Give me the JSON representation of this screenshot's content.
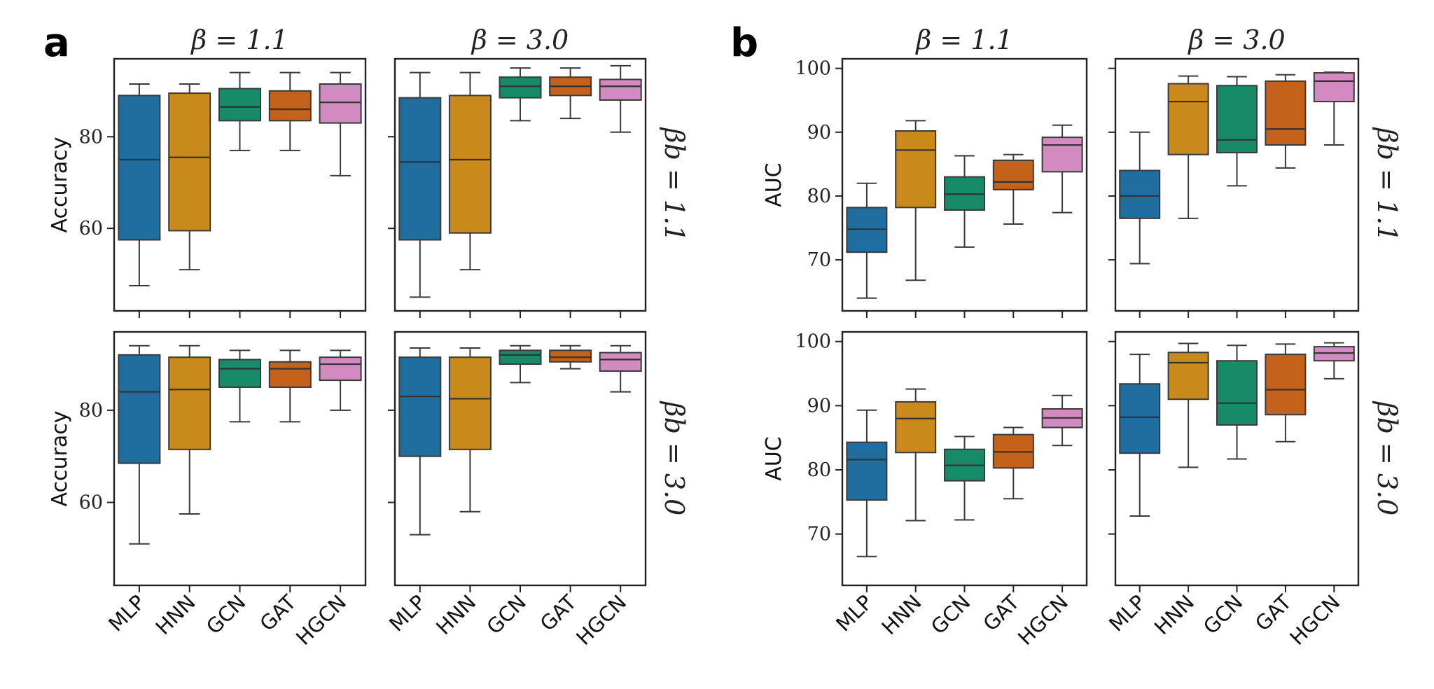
{
  "figure": {
    "panel_labels": [
      "a",
      "b"
    ],
    "column_titles": [
      "β = 1.1",
      "β = 3.0"
    ],
    "row_labels": [
      "βb = 1.1",
      "βb = 3.0"
    ]
  },
  "colors": {
    "MLP": "#1f6e9f",
    "HNN": "#c98a1c",
    "GCN": "#178a68",
    "GAT": "#c4611b",
    "HGCN": "#d18bc0"
  },
  "chart_data": [
    {
      "panel": "a",
      "type": "box",
      "metric": "Accuracy",
      "categories": [
        "MLP",
        "HNN",
        "GCN",
        "GAT",
        "HGCN"
      ],
      "ylabel": "Accuracy",
      "yticks": [
        60,
        80
      ],
      "ylim": [
        42,
        97
      ],
      "subplots": [
        {
          "title": "β = 1.1",
          "row_label": "βb = 1.1",
          "boxes": [
            {
              "min": 47.5,
              "q1": 57.5,
              "median": 75,
              "q3": 89,
              "max": 91.5
            },
            {
              "min": 51,
              "q1": 59.5,
              "median": 75.5,
              "q3": 89.5,
              "max": 91.5
            },
            {
              "min": 77,
              "q1": 83.5,
              "median": 86.5,
              "q3": 90.5,
              "max": 94
            },
            {
              "min": 77,
              "q1": 83.5,
              "median": 86,
              "q3": 90,
              "max": 94
            },
            {
              "min": 71.5,
              "q1": 83,
              "median": 87.5,
              "q3": 91.5,
              "max": 94
            }
          ]
        },
        {
          "title": "β = 3.0",
          "row_label": "βb = 1.1",
          "boxes": [
            {
              "min": 45,
              "q1": 57.5,
              "median": 74.5,
              "q3": 88.5,
              "max": 94
            },
            {
              "min": 51,
              "q1": 59,
              "median": 75,
              "q3": 89,
              "max": 94
            },
            {
              "min": 83.5,
              "q1": 88.5,
              "median": 91,
              "q3": 93,
              "max": 95
            },
            {
              "min": 84,
              "q1": 89,
              "median": 91,
              "q3": 93,
              "max": 95
            },
            {
              "min": 81,
              "q1": 88,
              "median": 91,
              "q3": 92.5,
              "max": 95.5
            }
          ]
        },
        {
          "title": "β = 1.1",
          "row_label": "βb = 3.0",
          "boxes": [
            {
              "min": 51,
              "q1": 68.5,
              "median": 84,
              "q3": 92,
              "max": 94
            },
            {
              "min": 57.5,
              "q1": 71.5,
              "median": 84.5,
              "q3": 91.5,
              "max": 94
            },
            {
              "min": 77.5,
              "q1": 85,
              "median": 89,
              "q3": 91,
              "max": 93
            },
            {
              "min": 77.5,
              "q1": 85,
              "median": 89,
              "q3": 90.5,
              "max": 93
            },
            {
              "min": 80,
              "q1": 86.5,
              "median": 90,
              "q3": 91.5,
              "max": 93
            }
          ]
        },
        {
          "title": "β = 3.0",
          "row_label": "βb = 3.0",
          "boxes": [
            {
              "min": 53,
              "q1": 70,
              "median": 83,
              "q3": 91.5,
              "max": 93.5
            },
            {
              "min": 58,
              "q1": 71.5,
              "median": 82.5,
              "q3": 91.5,
              "max": 93.5
            },
            {
              "min": 86,
              "q1": 90,
              "median": 92,
              "q3": 93,
              "max": 94
            },
            {
              "min": 89,
              "q1": 90.5,
              "median": 91.5,
              "q3": 93,
              "max": 94
            },
            {
              "min": 84,
              "q1": 88.5,
              "median": 91,
              "q3": 92.5,
              "max": 94
            }
          ]
        }
      ]
    },
    {
      "panel": "b",
      "type": "box",
      "metric": "AUC",
      "categories": [
        "MLP",
        "HNN",
        "GCN",
        "GAT",
        "HGCN"
      ],
      "ylabel": "AUC",
      "yticks": [
        70,
        80,
        90,
        100
      ],
      "ylim": [
        62,
        101.5
      ],
      "subplots": [
        {
          "title": "β = 1.1",
          "row_label": "βb = 1.1",
          "boxes": [
            {
              "min": 64,
              "q1": 71.2,
              "median": 74.8,
              "q3": 78.2,
              "max": 82
            },
            {
              "min": 66.8,
              "q1": 78.2,
              "median": 87.2,
              "q3": 90.2,
              "max": 91.8
            },
            {
              "min": 72,
              "q1": 77.8,
              "median": 80.3,
              "q3": 83,
              "max": 86.3
            },
            {
              "min": 75.6,
              "q1": 81,
              "median": 82.2,
              "q3": 85.6,
              "max": 86.5
            },
            {
              "min": 77.4,
              "q1": 83.8,
              "median": 88,
              "q3": 89.2,
              "max": 91.1
            }
          ]
        },
        {
          "title": "β = 3.0",
          "row_label": "βb = 1.1",
          "boxes": [
            {
              "min": 69.4,
              "q1": 76.5,
              "median": 80,
              "q3": 84,
              "max": 90
            },
            {
              "min": 76.5,
              "q1": 86.5,
              "median": 94.8,
              "q3": 97.6,
              "max": 98.8
            },
            {
              "min": 81.6,
              "q1": 86.8,
              "median": 88.8,
              "q3": 97.3,
              "max": 98.7
            },
            {
              "min": 84.4,
              "q1": 88,
              "median": 90.5,
              "q3": 98,
              "max": 99
            },
            {
              "min": 88,
              "q1": 94.8,
              "median": 98,
              "q3": 99.3,
              "max": 99.4
            }
          ]
        },
        {
          "title": "β = 1.1",
          "row_label": "βb = 3.0",
          "boxes": [
            {
              "min": 66.5,
              "q1": 75.3,
              "median": 81.6,
              "q3": 84.3,
              "max": 89.3
            },
            {
              "min": 72.1,
              "q1": 82.7,
              "median": 88,
              "q3": 90.6,
              "max": 92.6
            },
            {
              "min": 72.2,
              "q1": 78.3,
              "median": 80.7,
              "q3": 83.2,
              "max": 85.2
            },
            {
              "min": 75.5,
              "q1": 80.3,
              "median": 82.8,
              "q3": 85.5,
              "max": 86.6
            },
            {
              "min": 83.8,
              "q1": 86.6,
              "median": 88.1,
              "q3": 89.5,
              "max": 91.6
            }
          ]
        },
        {
          "title": "β = 3.0",
          "row_label": "βb = 3.0",
          "boxes": [
            {
              "min": 72.8,
              "q1": 82.6,
              "median": 88.2,
              "q3": 93.4,
              "max": 98
            },
            {
              "min": 80.4,
              "q1": 91,
              "median": 96.7,
              "q3": 98.3,
              "max": 99.7
            },
            {
              "min": 81.7,
              "q1": 87,
              "median": 90.4,
              "q3": 97,
              "max": 99.4
            },
            {
              "min": 84.4,
              "q1": 88.6,
              "median": 92.5,
              "q3": 98,
              "max": 99.6
            },
            {
              "min": 94.2,
              "q1": 97,
              "median": 98.2,
              "q3": 99.2,
              "max": 99.8
            }
          ]
        }
      ]
    }
  ]
}
